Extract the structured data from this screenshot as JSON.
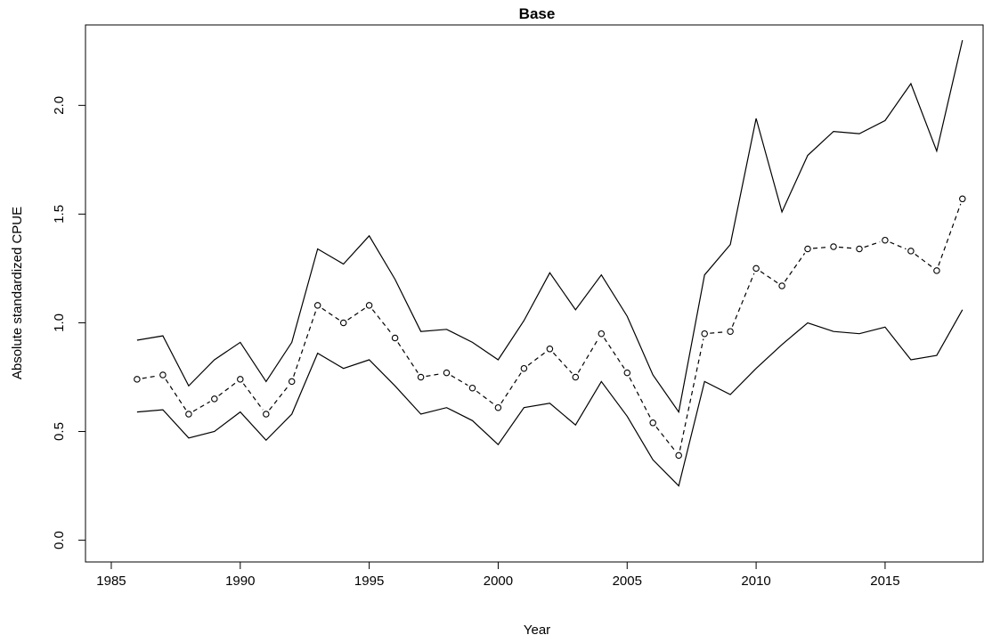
{
  "chart_data": {
    "type": "line",
    "title": "Base",
    "xlabel": "Year",
    "ylabel": "Absolute standardized CPUE",
    "xlim": [
      1984,
      2018.8
    ],
    "ylim": [
      -0.1,
      2.37
    ],
    "xticks": [
      1985,
      1990,
      1995,
      2000,
      2005,
      2010,
      2015
    ],
    "xtick_labels": [
      "1985",
      "1990",
      "1995",
      "2000",
      "2005",
      "2010",
      "2015"
    ],
    "yticks": [
      0.0,
      0.5,
      1.0,
      1.5,
      2.0
    ],
    "ytick_labels": [
      "0.0",
      "0.5",
      "1.0",
      "1.5",
      "2.0"
    ],
    "grid": false,
    "box": true,
    "x": [
      1986,
      1987,
      1988,
      1989,
      1990,
      1991,
      1992,
      1993,
      1994,
      1995,
      1996,
      1997,
      1998,
      1999,
      2000,
      2001,
      2002,
      2003,
      2004,
      2005,
      2006,
      2007,
      2008,
      2009,
      2010,
      2011,
      2012,
      2013,
      2014,
      2015,
      2016,
      2017,
      2018
    ],
    "series": [
      {
        "style": "dashed-with-open-circles",
        "values": [
          0.74,
          0.76,
          0.58,
          0.65,
          0.74,
          0.58,
          0.73,
          1.08,
          1.0,
          1.08,
          0.93,
          0.75,
          0.77,
          0.7,
          0.61,
          0.79,
          0.88,
          0.75,
          0.95,
          0.77,
          0.54,
          0.39,
          0.95,
          0.96,
          1.25,
          1.17,
          1.34,
          1.35,
          1.34,
          1.38,
          1.33,
          1.24,
          1.57
        ]
      },
      {
        "style": "solid",
        "values": [
          0.92,
          0.94,
          0.71,
          0.83,
          0.91,
          0.73,
          0.91,
          1.34,
          1.27,
          1.4,
          1.2,
          0.96,
          0.97,
          0.91,
          0.83,
          1.01,
          1.23,
          1.06,
          1.22,
          1.03,
          0.76,
          0.59,
          1.22,
          1.36,
          1.94,
          1.51,
          1.77,
          1.88,
          1.87,
          1.93,
          2.1,
          1.79,
          2.3
        ]
      },
      {
        "style": "solid",
        "values": [
          0.59,
          0.6,
          0.47,
          0.5,
          0.59,
          0.46,
          0.58,
          0.86,
          0.79,
          0.83,
          0.71,
          0.58,
          0.61,
          0.55,
          0.44,
          0.61,
          0.63,
          0.53,
          0.73,
          0.57,
          0.37,
          0.25,
          0.73,
          0.67,
          0.79,
          0.9,
          1.0,
          0.96,
          0.95,
          0.98,
          0.83,
          0.85,
          1.06
        ]
      }
    ]
  }
}
